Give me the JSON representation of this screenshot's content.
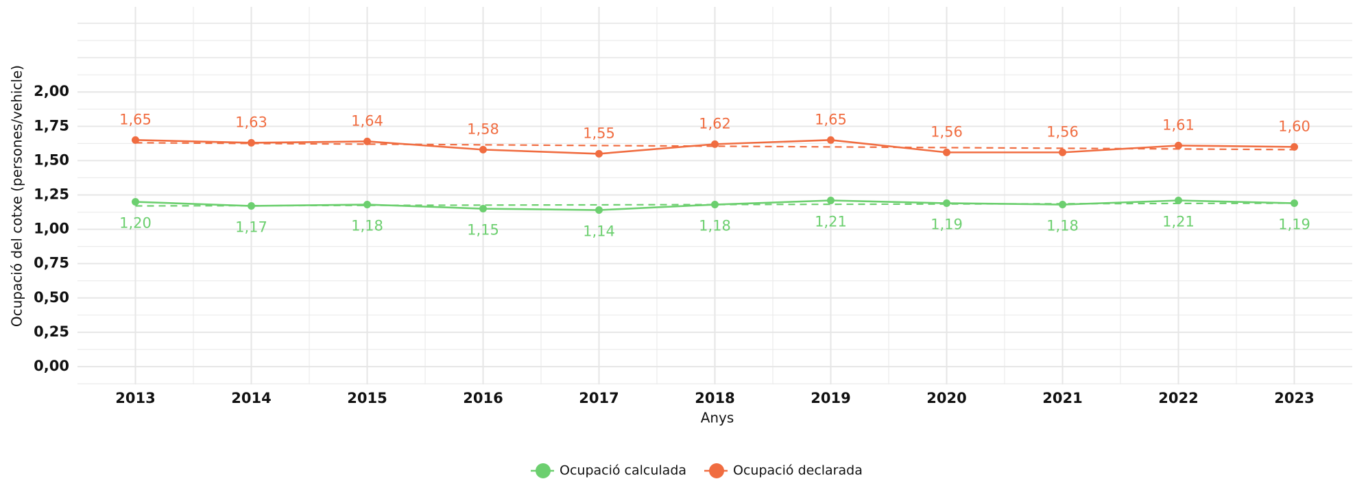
{
  "chart_data": {
    "type": "line",
    "x_label": "Anys",
    "y_label": "Ocupació del cotxe (persones/vehicle)",
    "x": [
      2013,
      2014,
      2015,
      2016,
      2017,
      2018,
      2019,
      2020,
      2021,
      2022,
      2023
    ],
    "xlim": [
      2012.5,
      2023.5
    ],
    "ylim": [
      -0.13,
      2.62
    ],
    "yticks": [
      {
        "value": 0,
        "label": "0,00"
      },
      {
        "value": 0.25,
        "label": "0,25"
      },
      {
        "value": 0.5,
        "label": "0,50"
      },
      {
        "value": 0.75,
        "label": "0,75"
      },
      {
        "value": 1,
        "label": "1,00"
      },
      {
        "value": 1.25,
        "label": "1,25"
      },
      {
        "value": 1.5,
        "label": "1,50"
      },
      {
        "value": 1.75,
        "label": "1,75"
      },
      {
        "value": 2,
        "label": "2,00"
      }
    ],
    "grid": true,
    "legend": "bottom",
    "series": [
      {
        "name": "Ocupació calculada",
        "color": "#6ccf6f",
        "label_side": "below",
        "values": [
          1.2,
          1.17,
          1.18,
          1.15,
          1.14,
          1.18,
          1.21,
          1.19,
          1.18,
          1.21,
          1.19
        ],
        "value_labels": [
          "1,20",
          "1,17",
          "1,18",
          "1,15",
          "1,14",
          "1,18",
          "1,21",
          "1,19",
          "1,18",
          "1,21",
          "1,19"
        ],
        "trend": [
          1.17,
          1.19
        ]
      },
      {
        "name": "Ocupació declarada",
        "color": "#f06c40",
        "label_side": "above",
        "values": [
          1.65,
          1.63,
          1.64,
          1.58,
          1.55,
          1.62,
          1.65,
          1.56,
          1.56,
          1.61,
          1.6
        ],
        "value_labels": [
          "1,65",
          "1,63",
          "1,64",
          "1,58",
          "1,55",
          "1,62",
          "1,65",
          "1,56",
          "1,56",
          "1,61",
          "1,60"
        ],
        "trend": [
          1.63,
          1.58
        ]
      }
    ]
  }
}
